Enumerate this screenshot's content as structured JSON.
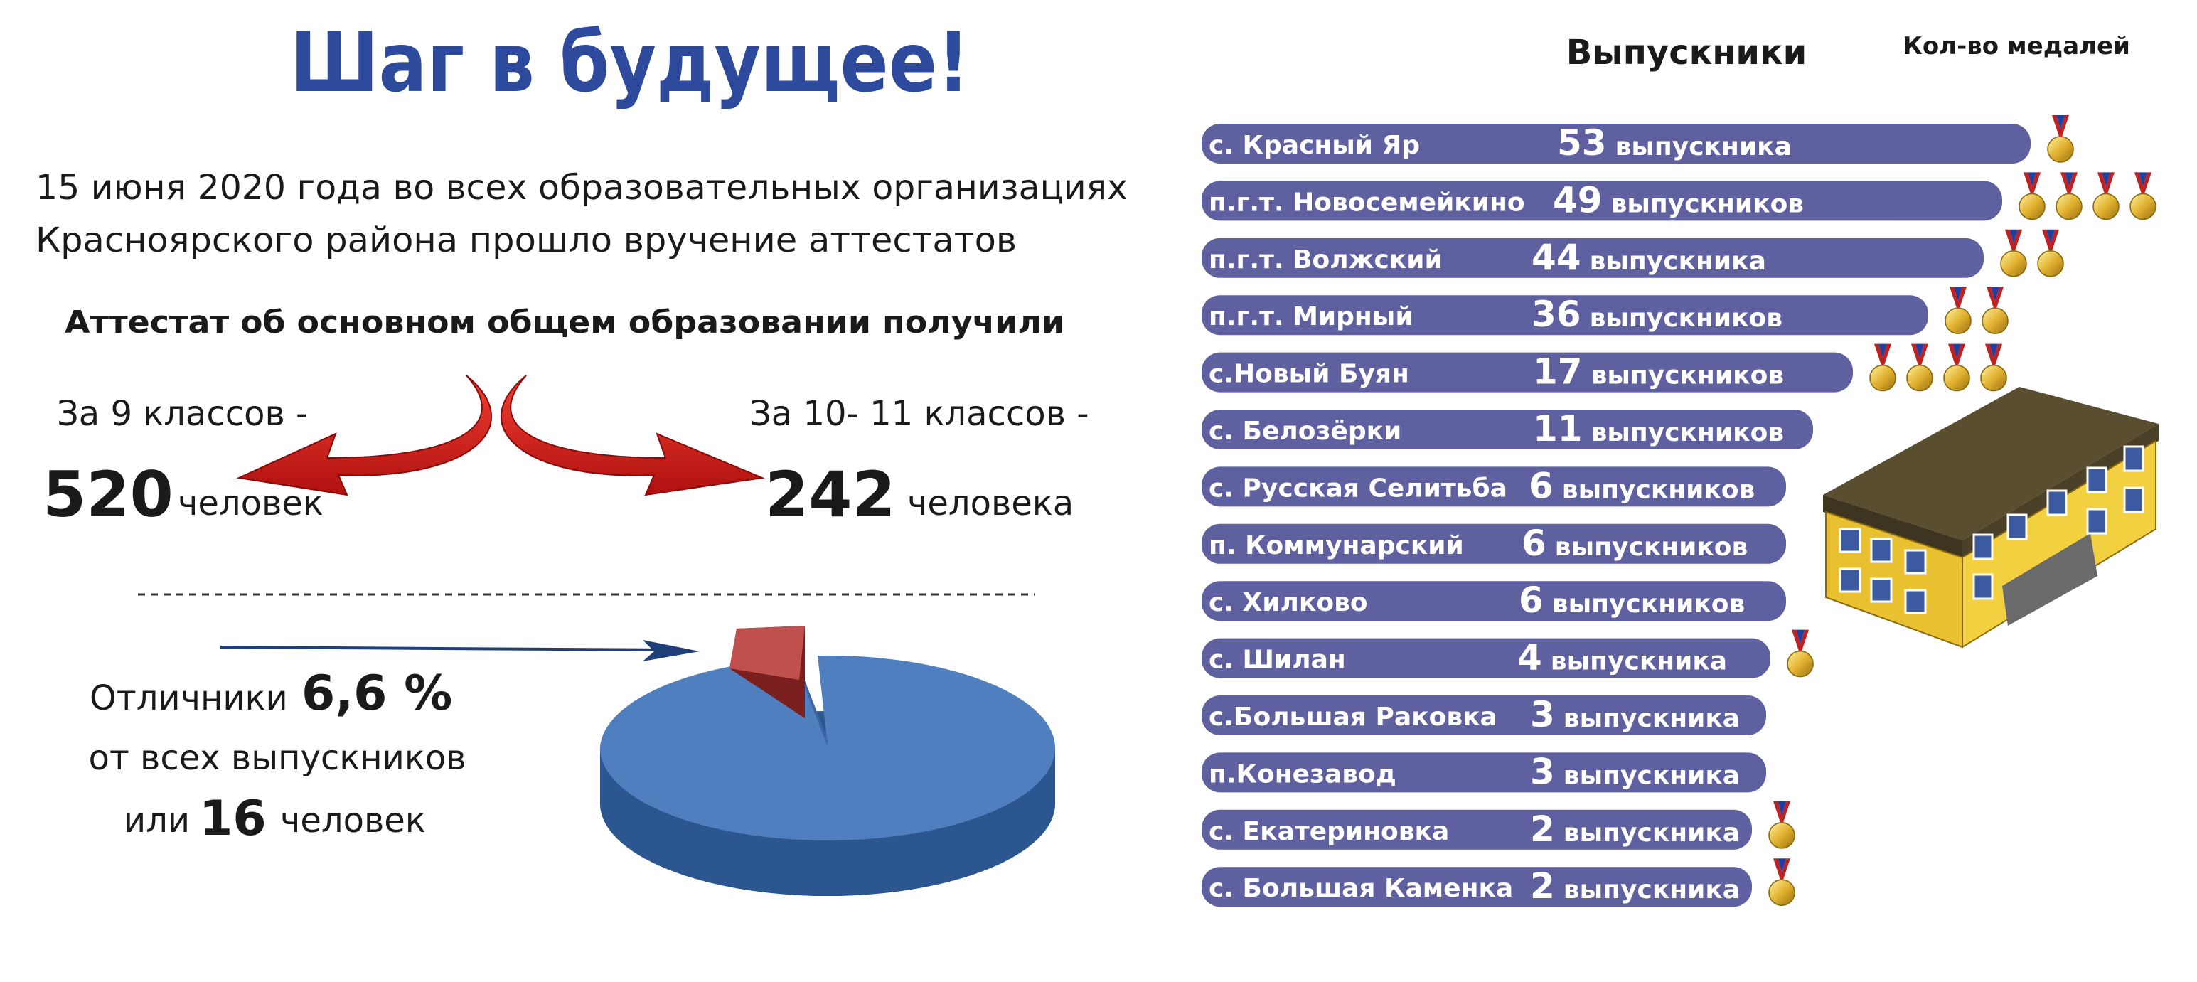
{
  "header": {
    "title": "Шаг в будущее!"
  },
  "intro": {
    "line1": "15 июня 2020 года во всех образовательных организациях",
    "line2": "Красноярского района прошло вручение аттестатов"
  },
  "certificates": {
    "heading": "Аттестат об основном общем образовании получили",
    "grade9": {
      "label": "За 9 классов -",
      "count": "520",
      "unit": "человек"
    },
    "grade11": {
      "label": "За 10- 11 классов -",
      "count": "242",
      "unit": "человека"
    }
  },
  "honors": {
    "label": "Отличники",
    "percent": "6,6 %",
    "line2": "от всех выпускников",
    "prefix": "или",
    "count": "16",
    "unit": "человек"
  },
  "graduates": {
    "heading": "Выпускники",
    "medals_heading": "Кол-во медалей",
    "rows": [
      {
        "name": "с. Красный Яр",
        "count": "53",
        "unit": "выпускника",
        "medals": 1
      },
      {
        "name": "п.г.т. Новосемейкино",
        "count": "49",
        "unit": "выпускников",
        "medals": 4
      },
      {
        "name": "п.г.т. Волжский",
        "count": "44",
        "unit": "выпускника",
        "medals": 2
      },
      {
        "name": "п.г.т. Мирный",
        "count": "36",
        "unit": "выпускников",
        "medals": 2
      },
      {
        "name": "с.Новый Буян",
        "count": "17",
        "unit": "выпускников",
        "medals": 4
      },
      {
        "name": "с. Белозёрки",
        "count": "11",
        "unit": "выпускников",
        "medals": 0
      },
      {
        "name": "с. Русская Селитьба",
        "count": "6",
        "unit": "выпускников",
        "medals": 0
      },
      {
        "name": "п. Коммунарский",
        "count": "6",
        "unit": "выпускников",
        "medals": 0
      },
      {
        "name": "с. Хилково",
        "count": "6",
        "unit": "выпускников",
        "medals": 0
      },
      {
        "name": "с. Шилан",
        "count": "4",
        "unit": "выпускника",
        "medals": 1
      },
      {
        "name": "с.Большая Раковка",
        "count": "3",
        "unit": "выпускника",
        "medals": 0
      },
      {
        "name": "п.Конезавод",
        "count": "3",
        "unit": "выпускника",
        "medals": 0
      },
      {
        "name": "с. Екатериновка",
        "count": "2",
        "unit": "выпускника",
        "medals": 1
      },
      {
        "name": "с. Большая Каменка",
        "count": "2",
        "unit": "выпускника",
        "medals": 1
      }
    ]
  }
}
